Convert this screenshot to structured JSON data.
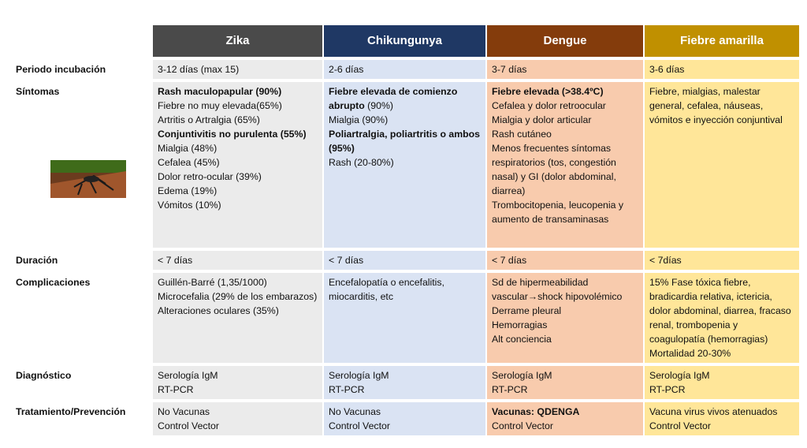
{
  "table": {
    "headers": [
      "Zika",
      "Chikungunya",
      "Dengue",
      "Fiebre amarilla"
    ],
    "rows": [
      {
        "label": "Periodo incubación",
        "cells": [
          [
            "3-12 días (max 15)"
          ],
          [
            "2-6 días"
          ],
          [
            "3-7 días"
          ],
          [
            "3-6 días"
          ]
        ]
      },
      {
        "label": "Síntomas",
        "cells": [
          [
            [
              {
                "text": "Rash maculopapular (90%)",
                "bold": true
              }
            ],
            "Fiebre no muy elevada(65%)",
            "Artritis o Artralgia (65%)",
            [
              {
                "text": "Conjuntivitis no purulenta (55%)",
                "bold": true
              }
            ],
            "Mialgia (48%)",
            "Cefalea (45%)",
            "Dolor retro-ocular (39%)",
            "Edema (19%)",
            "Vómitos (10%)"
          ],
          [
            [
              {
                "text": "Fiebre elevada de comienzo abrupto",
                "bold": true
              },
              " (90%)"
            ],
            "Mialgia (90%)",
            [
              {
                "text": "Poliartralgia, poliartritis o ambos (95%)",
                "bold": true
              }
            ],
            "Rash (20-80%)"
          ],
          [
            [
              {
                "text": "Fiebre elevada (>38.4ºC)",
                "bold": true
              }
            ],
            "Cefalea y dolor retroocular",
            "Mialgia y dolor articular",
            "Rash cutáneo",
            "Menos frecuentes síntomas respiratorios (tos, congestión nasal) y GI (dolor abdominal, diarrea)",
            "Trombocitopenia, leucopenia y aumento de transaminasas"
          ],
          [
            "Fiebre, mialgias, malestar general, cefalea, náuseas, vómitos e inyección conjuntival"
          ]
        ]
      },
      {
        "label": "Duración",
        "cells": [
          [
            "< 7 días"
          ],
          [
            "< 7 días"
          ],
          [
            "< 7 días"
          ],
          [
            "< 7días"
          ]
        ]
      },
      {
        "label": "Complicaciones",
        "cells": [
          [
            "Guillén-Barré (1,35/1000)",
            "Microcefalia (29% de los embarazos)",
            "Alteraciones oculares (35%)"
          ],
          [
            "Encefalopatía o encefalitis, miocarditis, etc"
          ],
          [
            "Sd de hipermeabilidad vascular→shock hipovolémico",
            "Derrame pleural",
            "Hemorragias",
            "Alt conciencia"
          ],
          [
            "15% Fase tóxica fiebre, bradicardia relativa, ictericia, dolor abdominal, diarrea, fracaso renal, trombopenia y coagulopatía (hemorragias)",
            "Mortalidad 20-30%"
          ]
        ]
      },
      {
        "label": "Diagnóstico",
        "cells": [
          [
            "Serología IgM",
            "RT-PCR"
          ],
          [
            "Serología IgM",
            "RT-PCR"
          ],
          [
            "Serología IgM",
            "RT-PCR"
          ],
          [
            "Serología IgM",
            "RT-PCR"
          ]
        ]
      },
      {
        "label": "Tratamiento/Prevención",
        "cells": [
          [
            "No Vacunas",
            "Control Vector"
          ],
          [
            "No Vacunas",
            "Control Vector"
          ],
          [
            [
              {
                "text": "Vacunas: QDENGA",
                "bold": true
              }
            ],
            "Control Vector"
          ],
          [
            "Vacuna virus vivos atenuados",
            "Control Vector"
          ]
        ]
      }
    ]
  }
}
